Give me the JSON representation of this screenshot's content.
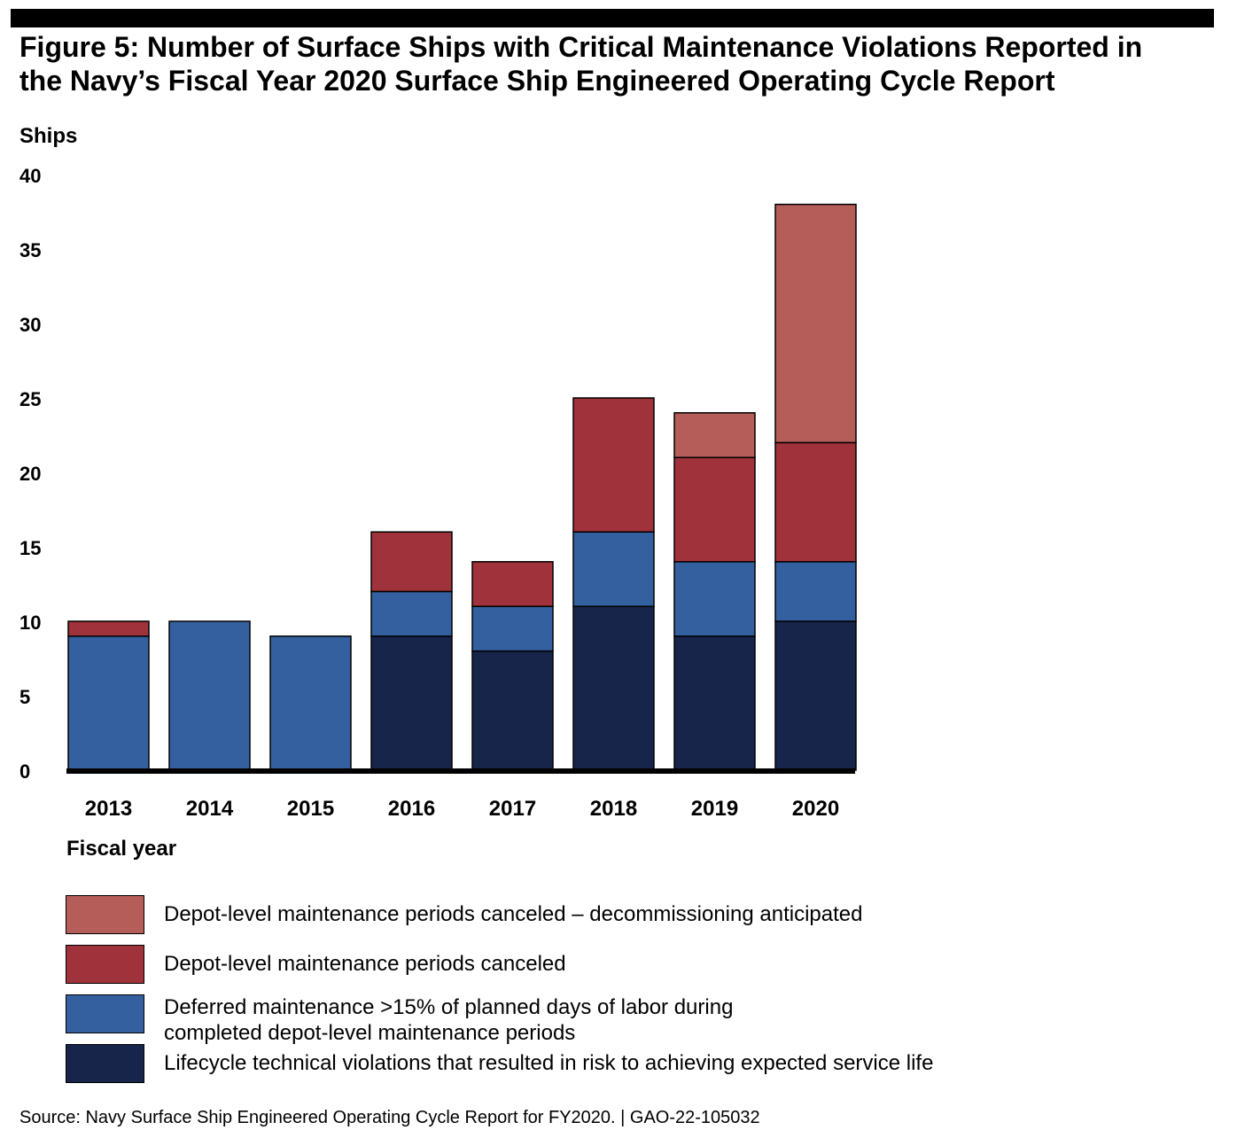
{
  "figure": {
    "title_line1": "Figure 5: Number of Surface Ships with Critical Maintenance Violations Reported in",
    "title_line2": "the Navy’s Fiscal Year 2020 Surface Ship Engineered Operating Cycle Report",
    "source": "Source: Navy Surface Ship Engineered Operating Cycle Report for FY2020.  |  GAO-22-105032"
  },
  "chart_data": {
    "type": "bar",
    "stacked": true,
    "title": "Figure 5: Number of Surface Ships with Critical Maintenance Violations Reported in the Navy’s Fiscal Year 2020 Surface Ship Engineered Operating Cycle Report",
    "xlabel": "Fiscal year",
    "ylabel": "Ships",
    "ylim": [
      0,
      40
    ],
    "yticks": [
      0,
      5,
      10,
      15,
      20,
      25,
      30,
      35,
      40
    ],
    "categories": [
      "2013",
      "2014",
      "2015",
      "2016",
      "2017",
      "2018",
      "2019",
      "2020"
    ],
    "series": [
      {
        "name": "Lifecycle technical violations that resulted in risk to achieving expected service life",
        "color": "#17254a",
        "values": [
          0,
          0,
          0,
          9,
          8,
          11,
          9,
          10
        ]
      },
      {
        "name": "Deferred maintenance >15% of planned days of labor during completed depot-level maintenance periods",
        "color": "#35609f",
        "values": [
          9,
          10,
          9,
          3,
          3,
          5,
          5,
          4
        ]
      },
      {
        "name": "Depot-level maintenance periods canceled",
        "color": "#a0323b",
        "values": [
          1,
          0,
          0,
          4,
          3,
          9,
          7,
          8
        ]
      },
      {
        "name": "Depot-level maintenance periods canceled – decommissioning anticipated",
        "color": "#b55d58",
        "values": [
          0,
          0,
          0,
          0,
          0,
          0,
          3,
          16
        ]
      }
    ],
    "legend_position": "bottom"
  },
  "legend": {
    "items": [
      {
        "label_lines": [
          "Depot-level maintenance periods canceled – decommissioning anticipated"
        ],
        "color": "#b55d58"
      },
      {
        "label_lines": [
          "Depot-level maintenance periods canceled"
        ],
        "color": "#a0323b"
      },
      {
        "label_lines": [
          "Deferred maintenance >15% of planned days of labor during",
          "completed depot-level maintenance periods"
        ],
        "color": "#35609f"
      },
      {
        "label_lines": [
          "Lifecycle technical violations that resulted in risk to achieving expected service life"
        ],
        "color": "#17254a"
      }
    ]
  }
}
